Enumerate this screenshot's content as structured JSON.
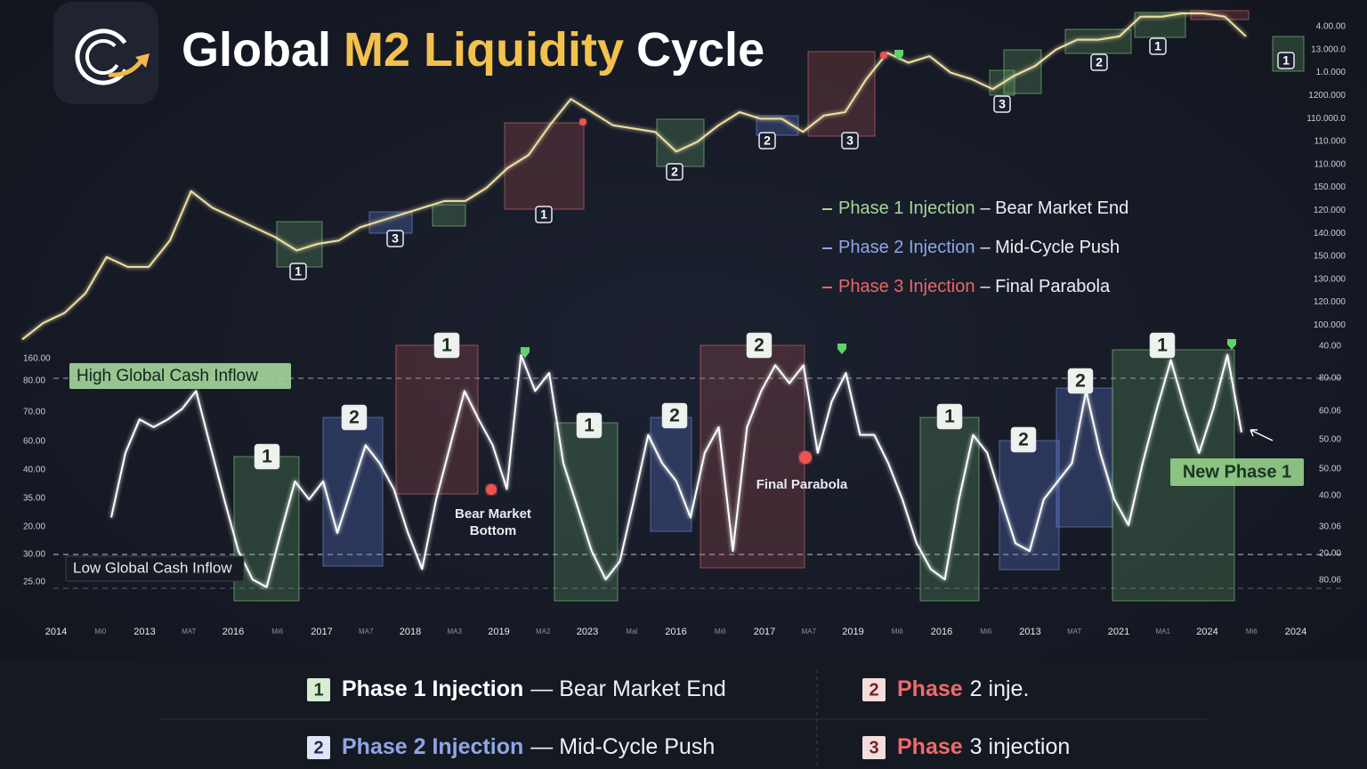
{
  "header": {
    "title": [
      "Global",
      "M2 Liquidity",
      "Cycle"
    ]
  },
  "chart_data": [
    {
      "type": "line",
      "color": "#efe0a2",
      "ylim": [
        0,
        100
      ],
      "values": [
        1,
        6,
        9,
        15,
        26,
        23,
        23,
        31,
        46,
        41,
        38,
        35,
        32,
        28,
        30,
        31,
        35,
        37,
        39,
        41,
        43,
        43,
        47,
        53,
        57,
        66,
        74,
        70,
        66,
        65,
        64,
        58,
        61,
        66,
        70,
        68,
        68,
        64,
        69,
        70,
        80,
        88,
        85,
        87,
        82,
        80,
        77,
        81,
        84,
        89,
        92,
        92,
        93,
        99,
        99,
        100,
        100,
        99,
        93
      ],
      "y_axis_labels": [
        "4.00.00",
        "13.000.0",
        "1.0.000",
        "1200.000",
        "110.000.0",
        "110.000",
        "110.000",
        "150.000",
        "120.000",
        "140.000",
        "150.000",
        "130.000",
        "120.000",
        "100.000"
      ],
      "box_labels": [
        "1",
        "3",
        "1",
        "2",
        "2",
        "3",
        "3",
        "2",
        "1",
        "1"
      ],
      "legend": [
        {
          "name": "Phase 1 Injection",
          "desc": "– Bear Market End",
          "color": "#a3d69c"
        },
        {
          "name": "Phase 2 Injection",
          "desc": "– Mid-Cycle Push",
          "color": "#8fa6e6"
        },
        {
          "name": "Phase 3 Injection",
          "desc": "– Final Parabola",
          "color": "#e86767"
        }
      ]
    },
    {
      "type": "line",
      "color": "#ffffff",
      "ylim": [
        0,
        100
      ],
      "values": [
        34,
        59,
        72,
        69,
        72,
        76,
        83,
        62,
        41,
        21,
        10,
        7,
        28,
        48,
        41,
        48,
        28,
        45,
        62,
        55,
        45,
        28,
        14,
        41,
        62,
        83,
        72,
        62,
        45,
        97,
        83,
        90,
        55,
        38,
        21,
        10,
        17,
        41,
        66,
        55,
        48,
        34,
        59,
        69,
        21,
        69,
        83,
        93,
        86,
        93,
        59,
        79,
        90,
        66,
        66,
        55,
        41,
        24,
        14,
        10,
        41,
        66,
        59,
        41,
        24,
        21,
        41,
        48,
        55,
        83,
        59,
        41,
        31,
        55,
        76,
        95,
        76,
        59,
        76,
        97,
        67
      ],
      "y_axis_labels": [
        "160.00",
        "80.00",
        "70.00",
        "60.00",
        "40.00",
        "35.00",
        "20.00",
        "30.00",
        "25.00"
      ],
      "y2_axis_labels": [
        "40.00",
        "80.00",
        "60.06",
        "50.00",
        "50.00",
        "40.00",
        "30.06",
        "20.00",
        "80.06"
      ],
      "x_labels": [
        "2014",
        "Mi0",
        "2013",
        "MAT",
        "2016",
        "Mi6",
        "2017",
        "MA7",
        "2018",
        "MA3",
        "2019",
        "MA2",
        "2023",
        "Mal",
        "2016",
        "Mi6",
        "2017",
        "MA7",
        "2019",
        "Mi6",
        "2016",
        "Mi6",
        "2013",
        "MAT",
        "2021",
        "MA1",
        "2024",
        "Mi6",
        "2024"
      ],
      "box_labels": [
        "1",
        "2",
        "1",
        "1",
        "2",
        "2",
        "1",
        "2",
        "2",
        "1"
      ],
      "annotations": {
        "high": "High Global Cash Inflow",
        "low": "Low Global Cash Inflow",
        "bottom": [
          "Bear Market",
          "Bottom"
        ],
        "parabola": "Final Parabola",
        "new_phase": "New Phase 1"
      }
    }
  ],
  "legend": [
    {
      "badge": "1",
      "name": "Phase 1 Injection",
      "desc": "— Bear Market End"
    },
    {
      "badge": "2",
      "name": "Phase",
      "desc": "2 inje."
    },
    {
      "badge": "2",
      "name": "Phase 2 Injection",
      "desc": "— Mid-Cycle Push"
    },
    {
      "badge": "3",
      "name": "Phase",
      "desc": "3 injection"
    }
  ]
}
